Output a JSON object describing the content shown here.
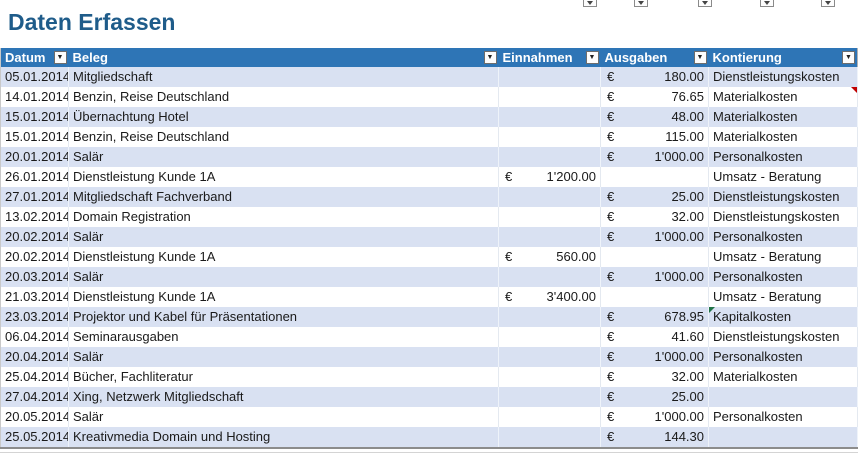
{
  "title": "Daten Erfassen",
  "currency_symbol": "€",
  "icons": {
    "filter_dropdown": "▼"
  },
  "colors": {
    "header_bg": "#2E75B6",
    "header_text": "#FFFFFF",
    "band_bg": "#D9E1F2",
    "title_color": "#1F5C8A",
    "comment_marker": "#C00000",
    "error_marker": "#217346"
  },
  "columns": [
    {
      "label": "Datum"
    },
    {
      "label": "Beleg"
    },
    {
      "label": "Einnahmen"
    },
    {
      "label": "Ausgaben"
    },
    {
      "label": "Kontierung"
    }
  ],
  "rows": [
    {
      "datum": "05.01.2014",
      "beleg": "Mitgliedschaft",
      "einnahmen": "",
      "ausgaben": "180.00",
      "kontierung": "Dienstleistungskosten",
      "marker": ""
    },
    {
      "datum": "14.01.2014",
      "beleg": "Benzin, Reise Deutschland",
      "einnahmen": "",
      "ausgaben": "76.65",
      "kontierung": "Materialkosten",
      "marker": "comment"
    },
    {
      "datum": "15.01.2014",
      "beleg": "Übernachtung Hotel",
      "einnahmen": "",
      "ausgaben": "48.00",
      "kontierung": "Materialkosten",
      "marker": ""
    },
    {
      "datum": "15.01.2014",
      "beleg": "Benzin, Reise Deutschland",
      "einnahmen": "",
      "ausgaben": "115.00",
      "kontierung": "Materialkosten",
      "marker": ""
    },
    {
      "datum": "20.01.2014",
      "beleg": "Salär",
      "einnahmen": "",
      "ausgaben": "1'000.00",
      "kontierung": "Personalkosten",
      "marker": ""
    },
    {
      "datum": "26.01.2014",
      "beleg": "Dienstleistung Kunde 1A",
      "einnahmen": "1'200.00",
      "ausgaben": "",
      "kontierung": "Umsatz - Beratung",
      "marker": ""
    },
    {
      "datum": "27.01.2014",
      "beleg": "Mitgliedschaft Fachverband",
      "einnahmen": "",
      "ausgaben": "25.00",
      "kontierung": "Dienstleistungskosten",
      "marker": ""
    },
    {
      "datum": "13.02.2014",
      "beleg": "Domain Registration",
      "einnahmen": "",
      "ausgaben": "32.00",
      "kontierung": "Dienstleistungskosten",
      "marker": ""
    },
    {
      "datum": "20.02.2014",
      "beleg": "Salär",
      "einnahmen": "",
      "ausgaben": "1'000.00",
      "kontierung": "Personalkosten",
      "marker": ""
    },
    {
      "datum": "20.02.2014",
      "beleg": "Dienstleistung Kunde 1A",
      "einnahmen": "560.00",
      "ausgaben": "",
      "kontierung": "Umsatz - Beratung",
      "marker": ""
    },
    {
      "datum": "20.03.2014",
      "beleg": "Salär",
      "einnahmen": "",
      "ausgaben": "1'000.00",
      "kontierung": "Personalkosten",
      "marker": ""
    },
    {
      "datum": "21.03.2014",
      "beleg": "Dienstleistung Kunde 1A",
      "einnahmen": "3'400.00",
      "ausgaben": "",
      "kontierung": "Umsatz - Beratung",
      "marker": ""
    },
    {
      "datum": "23.03.2014",
      "beleg": "Projektor und Kabel für Präsentationen",
      "einnahmen": "",
      "ausgaben": "678.95",
      "kontierung": "Kapitalkosten",
      "marker": "error"
    },
    {
      "datum": "06.04.2014",
      "beleg": "Seminarausgaben",
      "einnahmen": "",
      "ausgaben": "41.60",
      "kontierung": "Dienstleistungskosten",
      "marker": ""
    },
    {
      "datum": "20.04.2014",
      "beleg": "Salär",
      "einnahmen": "",
      "ausgaben": "1'000.00",
      "kontierung": "Personalkosten",
      "marker": ""
    },
    {
      "datum": "25.04.2014",
      "beleg": "Bücher, Fachliteratur",
      "einnahmen": "",
      "ausgaben": "32.00",
      "kontierung": "Materialkosten",
      "marker": ""
    },
    {
      "datum": "27.04.2014",
      "beleg": "Xing, Netzwerk Mitgliedschaft",
      "einnahmen": "",
      "ausgaben": "25.00",
      "kontierung": "",
      "marker": ""
    },
    {
      "datum": "20.05.2014",
      "beleg": "Salär",
      "einnahmen": "",
      "ausgaben": "1'000.00",
      "kontierung": "Personalkosten",
      "marker": ""
    },
    {
      "datum": "25.05.2014",
      "beleg": "Kreativmedia Domain und Hosting",
      "einnahmen": "",
      "ausgaben": "144.30",
      "kontierung": "",
      "marker": ""
    }
  ]
}
